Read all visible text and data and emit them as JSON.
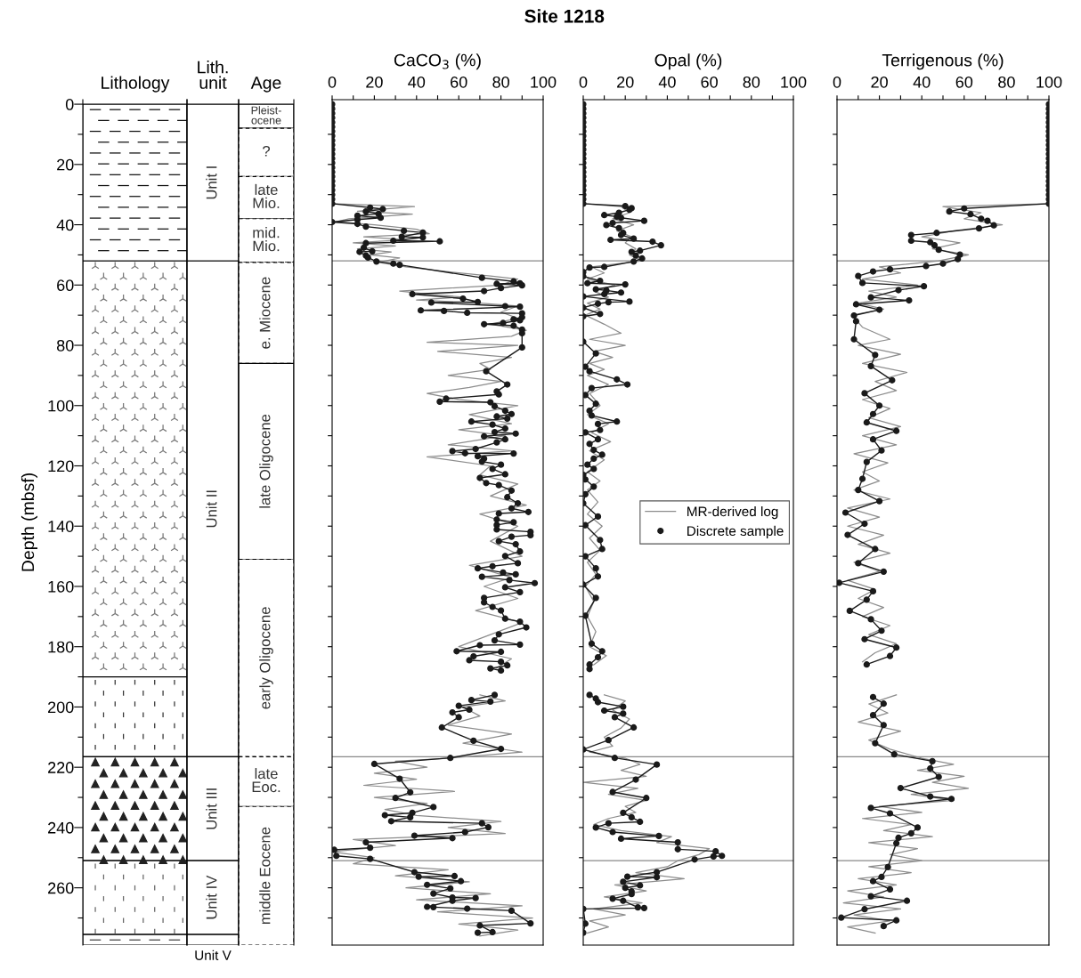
{
  "chart_data": [
    {
      "type": "bar",
      "stacked": true,
      "categories": [
        "Lithology"
      ],
      "ylabel": "Depth (mbsf)",
      "ylim": [
        279,
        -1.5
      ],
      "yticks": [
        0,
        {
          "value": 10,
          "label": null
        },
        20,
        {
          "value": 30,
          "label": null
        },
        40,
        {
          "value": 50,
          "label": null
        },
        60,
        {
          "value": 70,
          "label": null
        },
        80,
        {
          "value": 90,
          "label": null
        },
        100,
        {
          "value": 110,
          "label": null
        },
        120,
        {
          "value": 130,
          "label": null
        },
        140,
        {
          "value": 150,
          "label": null
        },
        160,
        {
          "value": 170,
          "label": null
        },
        180,
        {
          "value": 190,
          "label": null
        },
        200,
        {
          "value": 210,
          "label": null
        },
        220,
        {
          "value": 230,
          "label": null
        },
        240,
        {
          "value": 250,
          "label": null
        },
        260,
        {
          "value": 270,
          "label": null
        }
      ],
      "series": [
        {
          "color": "#ffffff",
          "values": [
            52
          ]
        },
        {
          "color": "#ffffff",
          "values": [
            138
          ]
        },
        {
          "color": "#ffffff",
          "values": [
            26.5
          ]
        },
        {
          "color": "#ffffff",
          "values": [
            34.5
          ]
        },
        {
          "color": "#ffffff",
          "values": [
            24.5
          ]
        },
        {
          "color": "#ffffff",
          "values": [
            3.5
          ]
        }
      ]
    },
    {
      "type": "bar",
      "stacked": true,
      "categories": [
        "Lith.\nunit"
      ],
      "ylim": [
        279,
        -1.5
      ],
      "tick_labels": "x",
      "series": [
        {
          "name": "Unit I",
          "color": "#ffffff",
          "values": [
            52
          ]
        },
        {
          "name": "Unit II",
          "color": "#ffffff",
          "values": [
            164.5
          ]
        },
        {
          "name": "Unit III",
          "color": "#ffffff",
          "values": [
            34.5
          ]
        },
        {
          "name": "Unit IV",
          "color": "#ffffff",
          "values": [
            24.5
          ]
        },
        {
          "name": "Unit V",
          "color": "#ffffff",
          "values": [
            3.5
          ]
        }
      ]
    },
    {
      "type": "bar",
      "stacked": true,
      "categories": [
        "Age"
      ],
      "ylim": [
        279,
        -1.5
      ],
      "tick_labels": "x",
      "series": [
        {
          "name": "Pleist-\nocene",
          "color": "#ffffff",
          "values": [
            8
          ],
          "line_style": "solid"
        },
        {
          "name": "?",
          "color": "#ffffff",
          "values": [
            16
          ],
          "line_style": "dashed"
        },
        {
          "name": "late\nMio.",
          "color": "#ffffff",
          "values": [
            14
          ],
          "line_style": "dashed"
        },
        {
          "name": "mid.\nMio.",
          "color": "#ffffff",
          "values": [
            14.5
          ],
          "line_style": "dashed"
        },
        {
          "name": "e. Miocene",
          "color": "#ffffff",
          "values": [
            33.5
          ],
          "line_style": "dashed"
        },
        {
          "name": "late Oligocene",
          "color": "#ffffff",
          "values": [
            65
          ],
          "line_style": "solid"
        },
        {
          "name": "early Oligocene",
          "color": "#ffffff",
          "values": [
            65.5
          ],
          "line_style": "dashed"
        },
        {
          "name": "late\nEoc.",
          "color": "#ffffff",
          "values": [
            16.5
          ],
          "line_style": "dashed"
        },
        {
          "name": "middle Eocene",
          "color": "#ffffff",
          "values": [
            46
          ],
          "line_style": "dashed"
        }
      ]
    },
    {
      "type": "line",
      "orientation": "horizontal",
      "xlabel": "CaCO$_{3}$ (%)",
      "xlim": [
        0,
        100
      ],
      "ylim": [
        279,
        -1.5
      ],
      "tick_labels": "x",
      "xticks": [
        0,
        {
          "value": 10,
          "label": null
        },
        20,
        {
          "value": 30,
          "label": null
        },
        40,
        {
          "value": 50,
          "label": null
        },
        60,
        {
          "value": 70,
          "label": null
        },
        80,
        {
          "value": 90,
          "label": null
        },
        100
      ],
      "yticks": [
        {
          "value": 10,
          "label": null
        },
        {
          "value": 20,
          "label": null
        },
        {
          "value": 30,
          "label": null
        },
        {
          "value": 40,
          "label": null
        },
        {
          "value": 50,
          "label": null
        },
        {
          "value": 60,
          "label": null
        },
        {
          "value": 70,
          "label": null
        },
        {
          "value": 80,
          "label": null
        },
        {
          "value": 90,
          "label": null
        },
        {
          "value": 100,
          "label": null
        },
        {
          "value": 110,
          "label": null
        },
        {
          "value": 120,
          "label": null
        },
        {
          "value": 130,
          "label": null
        },
        {
          "value": 140,
          "label": null
        },
        {
          "value": 150,
          "label": null
        },
        {
          "value": 160,
          "label": null
        },
        {
          "value": 170,
          "label": null
        },
        {
          "value": 180,
          "label": null
        },
        {
          "value": 190,
          "label": null
        },
        {
          "value": 200,
          "label": null
        },
        {
          "value": 210,
          "label": null
        },
        {
          "value": 220,
          "label": null
        },
        {
          "value": 230,
          "label": null
        },
        {
          "value": 240,
          "label": null
        },
        {
          "value": 250,
          "label": null
        },
        {
          "value": 260,
          "label": null
        },
        {
          "value": 270,
          "label": null
        }
      ],
      "ref_lines": [
        {
          "axis": "y",
          "value": 52,
          "color": "#888888"
        },
        {
          "axis": "y",
          "value": 216.5,
          "color": "#888888"
        },
        {
          "axis": "y",
          "value": 251,
          "color": "#888888"
        }
      ],
      "series": [
        {
          "color": "#8c8c8c",
          "marker": "none",
          "x": [
            0,
            33,
            34,
            35.5,
            36.5,
            38,
            39,
            40,
            41.5,
            43,
            44,
            45,
            46,
            47,
            48,
            49,
            50,
            51,
            52.5,
            54,
            56,
            57,
            58,
            60,
            62,
            63,
            64,
            65,
            66,
            67,
            69,
            71,
            73,
            75,
            77,
            79,
            80,
            82,
            84,
            86,
            88,
            90,
            92,
            94,
            96,
            98,
            100,
            103,
            106,
            108,
            110,
            113,
            115,
            117,
            120,
            123,
            126,
            130,
            133,
            136,
            140,
            145,
            150,
            153,
            157,
            160,
            164,
            168,
            172,
            176,
            180,
            184,
            187,
            192,
            196,
            198,
            200,
            203,
            206,
            209,
            212,
            215,
            217,
            218,
            220,
            222,
            224,
            226,
            228,
            230,
            232,
            234,
            236,
            238,
            240,
            242,
            244,
            246,
            248,
            250,
            252,
            254,
            256,
            258,
            260,
            262,
            264,
            266,
            268,
            270,
            272,
            274,
            276
          ],
          "values": [
            0,
            0,
            39,
            12,
            38,
            8,
            2,
            20,
            40,
            46,
            15,
            35,
            10,
            30,
            12,
            28,
            18,
            32,
            22,
            35,
            60,
            75,
            88,
            80,
            32,
            45,
            62,
            40,
            70,
            88,
            80,
            88,
            75,
            92,
            85,
            45,
            88,
            50,
            85,
            70,
            75,
            55,
            80,
            65,
            45,
            60,
            88,
            65,
            85,
            60,
            82,
            55,
            85,
            45,
            75,
            70,
            88,
            75,
            92,
            70,
            88,
            75,
            90,
            65,
            85,
            72,
            88,
            68,
            90,
            75,
            60,
            85,
            78,
            null,
            70,
            82,
            62,
            70,
            55,
            85,
            62,
            90,
            55,
            30,
            45,
            20,
            40,
            15,
            58,
            20,
            45,
            25,
            40,
            80,
            55,
            82,
            10,
            30,
            0,
            20,
            10,
            55,
            30,
            65,
            35,
            75,
            40,
            90,
            50,
            95,
            60,
            88,
            70
          ]
        },
        {
          "color": "#1a1a1a",
          "marker": "circle",
          "x": [
            0,
            1.5,
            3,
            4.5,
            6,
            7.5,
            9,
            10.5,
            12,
            13.5,
            15,
            16.5,
            18,
            19.5,
            21,
            22.5,
            24,
            25.5,
            27,
            28.5,
            30,
            31.5,
            33,
            34.3,
            34.8,
            35.6,
            36.4,
            37,
            37.7,
            38.3,
            39.1,
            39.7,
            40.6,
            42,
            42.6,
            44,
            44.2,
            45.3,
            45.5,
            46.1,
            47.6,
            48.8,
            49,
            50.2,
            50.9,
            52.2,
            52.9,
            53.3,
            57.6,
            58.8,
            59.4,
            59.6,
            60.1,
            61,
            62,
            63,
            64.5,
            65.6,
            65.8,
            67,
            67.2,
            68.4,
            68.6,
            69.2,
            69.4,
            70.7,
            71.4,
            71.7,
            72.6,
            73,
            73.5,
            74.8,
            76,
            80.7,
            88.6,
            93,
            95.3,
            96.3,
            97.7,
            98.7,
            98.9,
            100.2,
            101.7,
            102.8,
            103.6,
            104.3,
            105.3,
            106.3,
            107.6,
            108.8,
            109.3,
            110.2,
            111.2,
            112.2,
            114.4,
            115.1,
            115.8,
            115.9,
            116.8,
            117.6,
            118.6,
            119.6,
            121,
            122.8,
            124,
            125.7,
            126.4,
            128.2,
            130.4,
            132.4,
            134.1,
            135.3,
            135.8,
            137.8,
            138.7,
            139.6,
            141.1,
            141.9,
            143,
            143.5,
            145,
            146,
            148.4,
            149.9,
            152.3,
            153.3,
            154,
            155.4,
            156,
            156.8,
            157.9,
            158.9,
            160.3,
            161.9,
            163.8,
            165.3,
            166.8,
            168,
            170.7,
            171.7,
            173.6,
            175.9,
            177.9,
            179.3,
            179.5,
            181.5,
            181.7,
            183.2,
            184.5,
            185,
            186.2,
            187.2,
            187.9,
            192,
            196,
            197.7,
            198.2,
            199.6,
            200.9,
            201.8,
            203.4,
            206.8,
            211.2,
            213.9,
            216.9,
            218.9,
            223.8,
            228.3,
            230.2,
            233.2,
            235.1,
            235.9,
            236.6,
            237.9,
            238.6,
            239.9,
            241.5,
            242.7,
            243.5,
            244.9,
            246.7,
            247.4,
            249.4,
            250.4,
            254.8,
            256.1,
            256.3,
            257.8,
            259,
            260.2,
            261.9,
            263.2,
            263.4,
            264.3,
            266.3,
            266.4,
            266.9,
            267.6,
            271.8,
            272.5,
            274.7,
            274.9
          ],
          "values": [
            0,
            0,
            0,
            0,
            0,
            0,
            0,
            0,
            0,
            0,
            0,
            0,
            0,
            0,
            0,
            0,
            0,
            0,
            0,
            0,
            0,
            0,
            0,
            18,
            24,
            16,
            22,
            12,
            23,
            12,
            0,
            12,
            16,
            34,
            43,
            33,
            43,
            29,
            51,
            16,
            15,
            19,
            13,
            16,
            17,
            21,
            29,
            32,
            71,
            86,
            89,
            78,
            90,
            80,
            72,
            38,
            62,
            69,
            47,
            82,
            89,
            42,
            53,
            64,
            90,
            90,
            86,
            89,
            81,
            72,
            86,
            90,
            90,
            90,
            73,
            83,
            78,
            79,
            54,
            51,
            75,
            77,
            82,
            85,
            78,
            83,
            66,
            76,
            82,
            77,
            87,
            72,
            82,
            78,
            68,
            57,
            63,
            86,
            69,
            72,
            71,
            80,
            76,
            82,
            70,
            73,
            79,
            85,
            83,
            88,
            85,
            93,
            79,
            78,
            86,
            78,
            78,
            94,
            94,
            85,
            79,
            87,
            89,
            82,
            88,
            76,
            69,
            81,
            87,
            71,
            84,
            96,
            82,
            89,
            72,
            72,
            76,
            80,
            82,
            89,
            92,
            79,
            77,
            89,
            70,
            59,
            80,
            67,
            65,
            80,
            83,
            75,
            80,
            null,
            77,
            66,
            75,
            60,
            65,
            57,
            60,
            52,
            67,
            80,
            56,
            20,
            32,
            37,
            30,
            48,
            38,
            25,
            37,
            28,
            71,
            74,
            63,
            39,
            57,
            16,
            18,
            1,
            2,
            18,
            39,
            58,
            41,
            61,
            45,
            56,
            48,
            57,
            68,
            57,
            45,
            48,
            64,
            85,
            94,
            70,
            76,
            69
          ]
        }
      ]
    },
    {
      "type": "line",
      "orientation": "horizontal",
      "title": "Site 1218",
      "xlabel": "Opal (%)",
      "xlim": [
        0,
        100
      ],
      "ylim": [
        279,
        -1.5
      ],
      "tick_labels": "x",
      "legend": "right",
      "xticks": [
        0,
        {
          "value": 10,
          "label": null
        },
        20,
        {
          "value": 30,
          "label": null
        },
        40,
        {
          "value": 50,
          "label": null
        },
        60,
        {
          "value": 70,
          "label": null
        },
        80,
        {
          "value": 90,
          "label": null
        },
        100
      ],
      "yticks": [
        {
          "value": 10,
          "label": null
        },
        {
          "value": 20,
          "label": null
        },
        {
          "value": 30,
          "label": null
        },
        {
          "value": 40,
          "label": null
        },
        {
          "value": 50,
          "label": null
        },
        {
          "value": 60,
          "label": null
        },
        {
          "value": 70,
          "label": null
        },
        {
          "value": 80,
          "label": null
        },
        {
          "value": 90,
          "label": null
        },
        {
          "value": 100,
          "label": null
        },
        {
          "value": 110,
          "label": null
        },
        {
          "value": 120,
          "label": null
        },
        {
          "value": 130,
          "label": null
        },
        {
          "value": 140,
          "label": null
        },
        {
          "value": 150,
          "label": null
        },
        {
          "value": 160,
          "label": null
        },
        {
          "value": 170,
          "label": null
        },
        {
          "value": 180,
          "label": null
        },
        {
          "value": 190,
          "label": null
        },
        {
          "value": 200,
          "label": null
        },
        {
          "value": 210,
          "label": null
        },
        {
          "value": 220,
          "label": null
        },
        {
          "value": 230,
          "label": null
        },
        {
          "value": 240,
          "label": null
        },
        {
          "value": 250,
          "label": null
        },
        {
          "value": 260,
          "label": null
        },
        {
          "value": 270,
          "label": null
        }
      ],
      "ref_lines": [
        {
          "axis": "y",
          "value": 52,
          "color": "#888888"
        },
        {
          "axis": "y",
          "value": 216.5,
          "color": "#888888"
        },
        {
          "axis": "y",
          "value": 251,
          "color": "#888888"
        }
      ],
      "series": [
        {
          "name": "MR-derived log",
          "color": "#8c8c8c",
          "marker": "none",
          "x": [
            0,
            33,
            34,
            36,
            38,
            40,
            42,
            44,
            46,
            48,
            50,
            52,
            54,
            56,
            58,
            60,
            62,
            64,
            66,
            68,
            70,
            73,
            76,
            78,
            80,
            82,
            84,
            86,
            88,
            90,
            93,
            96,
            100,
            103,
            106,
            109,
            112,
            115,
            118,
            122,
            125,
            128,
            132,
            136,
            140,
            144,
            148,
            152,
            156,
            160,
            165,
            170,
            175,
            180,
            183,
            186,
            192,
            196,
            198,
            201,
            204,
            207,
            210,
            213,
            215,
            217,
            219,
            221,
            223,
            225,
            227,
            229,
            231,
            233,
            235,
            237,
            239,
            241,
            243,
            245,
            247,
            249,
            251,
            253,
            255,
            257,
            259,
            261,
            263,
            265,
            267,
            269,
            271,
            273,
            275
          ],
          "values": [
            0,
            0,
            18,
            22,
            14,
            24,
            16,
            23,
            20,
            25,
            22,
            28,
            4,
            10,
            2,
            15,
            5,
            12,
            2,
            8,
            1,
            10,
            18,
            3,
            20,
            5,
            14,
            3,
            10,
            2,
            12,
            3,
            8,
            2,
            12,
            4,
            13,
            3,
            10,
            2,
            8,
            2,
            7,
            2,
            9,
            3,
            8,
            2,
            6,
            1,
            5,
            2,
            6,
            3,
            11,
            5,
            null,
            10,
            20,
            14,
            22,
            18,
            10,
            14,
            3,
            20,
            27,
            18,
            30,
            0,
            26,
            12,
            30,
            20,
            25,
            12,
            5,
            18,
            42,
            35,
            60,
            55,
            45,
            40,
            25,
            48,
            15,
            30,
            10,
            28,
            5,
            20,
            3,
            12,
            2
          ]
        },
        {
          "name": "Discrete sample",
          "color": "#1a1a1a",
          "marker": "circle",
          "x": [
            0,
            1.5,
            3,
            4.5,
            6,
            7.5,
            9,
            10.5,
            12,
            13.5,
            15,
            16.5,
            18,
            19.5,
            21,
            22.5,
            24,
            25.5,
            27,
            28.5,
            30,
            31.5,
            33,
            33.8,
            34.5,
            35,
            36,
            36.8,
            37.3,
            37.7,
            38.7,
            39.4,
            40.1,
            41.1,
            42.7,
            43.4,
            44.6,
            45,
            45.6,
            46.8,
            48.6,
            49,
            50.2,
            51.2,
            52.2,
            54,
            54.2,
            55.7,
            57.1,
            58.6,
            59.4,
            59.8,
            61.4,
            61.8,
            62.5,
            63,
            63.8,
            65.5,
            65.7,
            66.2,
            67.5,
            69.6,
            70.4,
            78.8,
            82.7,
            87.1,
            88.6,
            91.3,
            93,
            94.2,
            96.5,
            99.4,
            101.7,
            103.3,
            105.3,
            106.1,
            108.1,
            108.9,
            111.2,
            112.7,
            114.7,
            116.3,
            117.6,
            119.6,
            121,
            123,
            124.5,
            126.9,
            129.4,
            132.4,
            136.8,
            139.7,
            144.6,
            147.6,
            150,
            154,
            156.7,
            159.4,
            163.8,
            169.7,
            179,
            181.5,
            183.5,
            185.9,
            187.4,
            192,
            196,
            197.2,
            198.4,
            199.9,
            201.2,
            202.2,
            203.4,
            206.8,
            211,
            214.1,
            216.9,
            219.1,
            224.1,
            228.2,
            230.2,
            235.1,
            236.6,
            238.1,
            238.6,
            240,
            241.5,
            242.8,
            243.7,
            244.9,
            247.2,
            247.9,
            249.4,
            249.6,
            250.6,
            254.8,
            256.3,
            256.5,
            258,
            259.2,
            260,
            261.2,
            262.1,
            263.6,
            264.3,
            266.5,
            266.7,
            267,
            271.9,
            274.9
          ],
          "values": [
            0,
            0,
            0,
            0,
            0,
            0,
            0,
            0,
            0,
            0,
            0,
            0,
            0,
            0,
            0,
            0,
            0,
            0,
            0,
            0,
            0,
            0,
            0,
            20,
            23,
            22,
            17,
            10,
            16,
            18,
            29,
            14,
            11,
            17,
            19,
            18,
            24,
            13,
            33,
            37,
            27,
            23,
            25,
            28,
            24,
            10,
            3,
            0,
            0,
            8,
            2,
            20,
            6,
            11,
            18,
            10,
            0,
            22,
            12,
            7,
            0,
            8,
            0,
            0,
            6,
            1,
            3,
            16,
            21,
            4,
            1,
            6,
            3,
            4,
            16,
            7,
            8,
            1,
            7,
            3,
            5,
            9,
            5,
            2,
            5,
            0,
            1,
            5,
            1,
            0,
            7,
            1,
            8,
            9,
            1,
            6,
            7,
            0,
            6,
            1,
            4,
            9,
            7,
            3,
            3,
            null,
            3,
            6,
            7,
            19,
            10,
            19,
            15,
            24,
            12,
            0,
            15,
            35,
            25,
            14,
            30,
            19,
            23,
            27,
            12,
            6,
            14,
            36,
            18,
            45,
            45,
            63,
            66,
            62,
            53,
            35,
            21,
            35,
            19,
            27,
            20,
            23,
            23,
            14,
            19,
            26,
            29,
            0,
            1,
            0
          ]
        }
      ]
    },
    {
      "type": "line",
      "orientation": "horizontal",
      "xlabel": "Terrigenous (%)",
      "xlim": [
        0,
        100
      ],
      "ylim": [
        279,
        -1.5
      ],
      "tick_labels": "x",
      "xticks": [
        0,
        {
          "value": 10,
          "label": null
        },
        20,
        {
          "value": 30,
          "label": null
        },
        40,
        {
          "value": 50,
          "label": null
        },
        60,
        {
          "value": 70,
          "label": null
        },
        80,
        {
          "value": 90,
          "label": null
        },
        100
      ],
      "yticks": [
        {
          "value": 10,
          "label": null
        },
        {
          "value": 20,
          "label": null
        },
        {
          "value": 30,
          "label": null
        },
        {
          "value": 40,
          "label": null
        },
        {
          "value": 50,
          "label": null
        },
        {
          "value": 60,
          "label": null
        },
        {
          "value": 70,
          "label": null
        },
        {
          "value": 80,
          "label": null
        },
        {
          "value": 90,
          "label": null
        },
        {
          "value": 100,
          "label": null
        },
        {
          "value": 110,
          "label": null
        },
        {
          "value": 120,
          "label": null
        },
        {
          "value": 130,
          "label": null
        },
        {
          "value": 140,
          "label": null
        },
        {
          "value": 150,
          "label": null
        },
        {
          "value": 160,
          "label": null
        },
        {
          "value": 170,
          "label": null
        },
        {
          "value": 180,
          "label": null
        },
        {
          "value": 190,
          "label": null
        },
        {
          "value": 200,
          "label": null
        },
        {
          "value": 210,
          "label": null
        },
        {
          "value": 220,
          "label": null
        },
        {
          "value": 230,
          "label": null
        },
        {
          "value": 240,
          "label": null
        },
        {
          "value": 250,
          "label": null
        },
        {
          "value": 260,
          "label": null
        },
        {
          "value": 270,
          "label": null
        }
      ],
      "ref_lines": [
        {
          "axis": "y",
          "value": 52,
          "color": "#888888"
        },
        {
          "axis": "y",
          "value": 216.5,
          "color": "#888888"
        },
        {
          "axis": "y",
          "value": 251,
          "color": "#888888"
        }
      ],
      "series": [
        {
          "color": "#8c8c8c",
          "marker": "none",
          "x": [
            0,
            33,
            34,
            36,
            38,
            40,
            42,
            44,
            46,
            48,
            50,
            52,
            54,
            56,
            58,
            60,
            62,
            64,
            66,
            68,
            70,
            74,
            78,
            80,
            83,
            86,
            89,
            92,
            95,
            98,
            101,
            104,
            107,
            110,
            113,
            116,
            119,
            122,
            125,
            128,
            131,
            134,
            137,
            140,
            143,
            146,
            149,
            152,
            155,
            158,
            161,
            164,
            167,
            170,
            173,
            176,
            179,
            182,
            185,
            192,
            196,
            199,
            202,
            205,
            208,
            211,
            214,
            217,
            219,
            221,
            223,
            225,
            227,
            229,
            231,
            233,
            235,
            237,
            239,
            241,
            243,
            245,
            247,
            249,
            251,
            253,
            255,
            257,
            259,
            261,
            263,
            265,
            267,
            269,
            271,
            273,
            275
          ],
          "values": [
            100,
            100,
            50,
            68,
            60,
            78,
            55,
            40,
            58,
            45,
            62,
            48,
            20,
            30,
            12,
            38,
            15,
            28,
            10,
            22,
            7,
            12,
            25,
            10,
            30,
            12,
            33,
            18,
            28,
            12,
            25,
            15,
            30,
            12,
            28,
            8,
            24,
            12,
            20,
            8,
            25,
            5,
            20,
            5,
            22,
            10,
            25,
            8,
            20,
            5,
            18,
            10,
            22,
            12,
            25,
            15,
            28,
            18,
            12,
            null,
            28,
            15,
            24,
            10,
            30,
            15,
            25,
            40,
            55,
            38,
            60,
            45,
            62,
            35,
            55,
            20,
            40,
            12,
            35,
            22,
            45,
            15,
            38,
            25,
            40,
            15,
            35,
            10,
            28,
            5,
            22,
            3,
            30,
            8,
            25,
            5,
            18
          ]
        },
        {
          "color": "#1a1a1a",
          "marker": "circle",
          "x": [
            0,
            1.5,
            3,
            4.5,
            6,
            7.5,
            9,
            10.5,
            12,
            13.5,
            15,
            16.5,
            18,
            19.5,
            21,
            22.5,
            24,
            25.5,
            27,
            28.5,
            30,
            31.5,
            33,
            34.6,
            35.6,
            36.5,
            38,
            38.7,
            40.2,
            41.2,
            42.7,
            43.4,
            45.3,
            45.8,
            46.8,
            48.3,
            49.9,
            51.4,
            52.9,
            53.7,
            54.8,
            55.5,
            57,
            59.3,
            60.4,
            61.7,
            64.1,
            65.1,
            66.4,
            68.2,
            70.1,
            72,
            78,
            83.2,
            86.9,
            91.6,
            95.9,
            100,
            102.8,
            105.6,
            108.4,
            111.2,
            114.9,
            118.7,
            124.3,
            128,
            131.7,
            135.5,
            139.2,
            142.9,
            147.6,
            152.3,
            155.1,
            158.8,
            161.6,
            164.4,
            168.1,
            170.9,
            174.7,
            177.5,
            180.3,
            183.1,
            185.9,
            192,
            196.7,
            198.9,
            202.7,
            206,
            212,
            215.7,
            218,
            220.4,
            223.2,
            226.9,
            229.7,
            230.5,
            233.5,
            235.3,
            240,
            241.9,
            243.4,
            245.2,
            253.1,
            256.4,
            257.8,
            260.5,
            262.8,
            264.3,
            267.1,
            269.9,
            270.8,
            272.7
          ],
          "values": [
            100,
            100,
            100,
            100,
            100,
            100,
            100,
            100,
            100,
            100,
            100,
            100,
            100,
            100,
            100,
            100,
            100,
            100,
            100,
            100,
            100,
            100,
            100,
            60,
            53,
            63,
            68,
            71,
            74,
            67,
            47,
            35,
            35,
            44,
            46,
            48,
            58,
            57,
            50,
            42,
            25,
            17,
            10,
            12,
            41,
            29,
            16,
            34,
            9,
            20,
            8,
            9,
            8,
            18,
            16,
            26,
            13,
            20,
            17,
            14,
            28,
            17,
            21,
            14,
            12,
            10,
            20,
            4,
            13,
            5,
            18,
            10,
            22,
            1,
            17,
            14,
            6,
            16,
            21,
            13,
            28,
            25,
            14,
            null,
            17,
            22,
            17,
            22,
            18,
            27,
            45,
            44,
            48,
            30,
            44,
            54,
            16,
            25,
            38,
            35,
            29,
            28,
            24,
            21,
            17,
            25,
            16,
            33,
            13,
            2,
            28,
            22
          ]
        }
      ]
    }
  ]
}
